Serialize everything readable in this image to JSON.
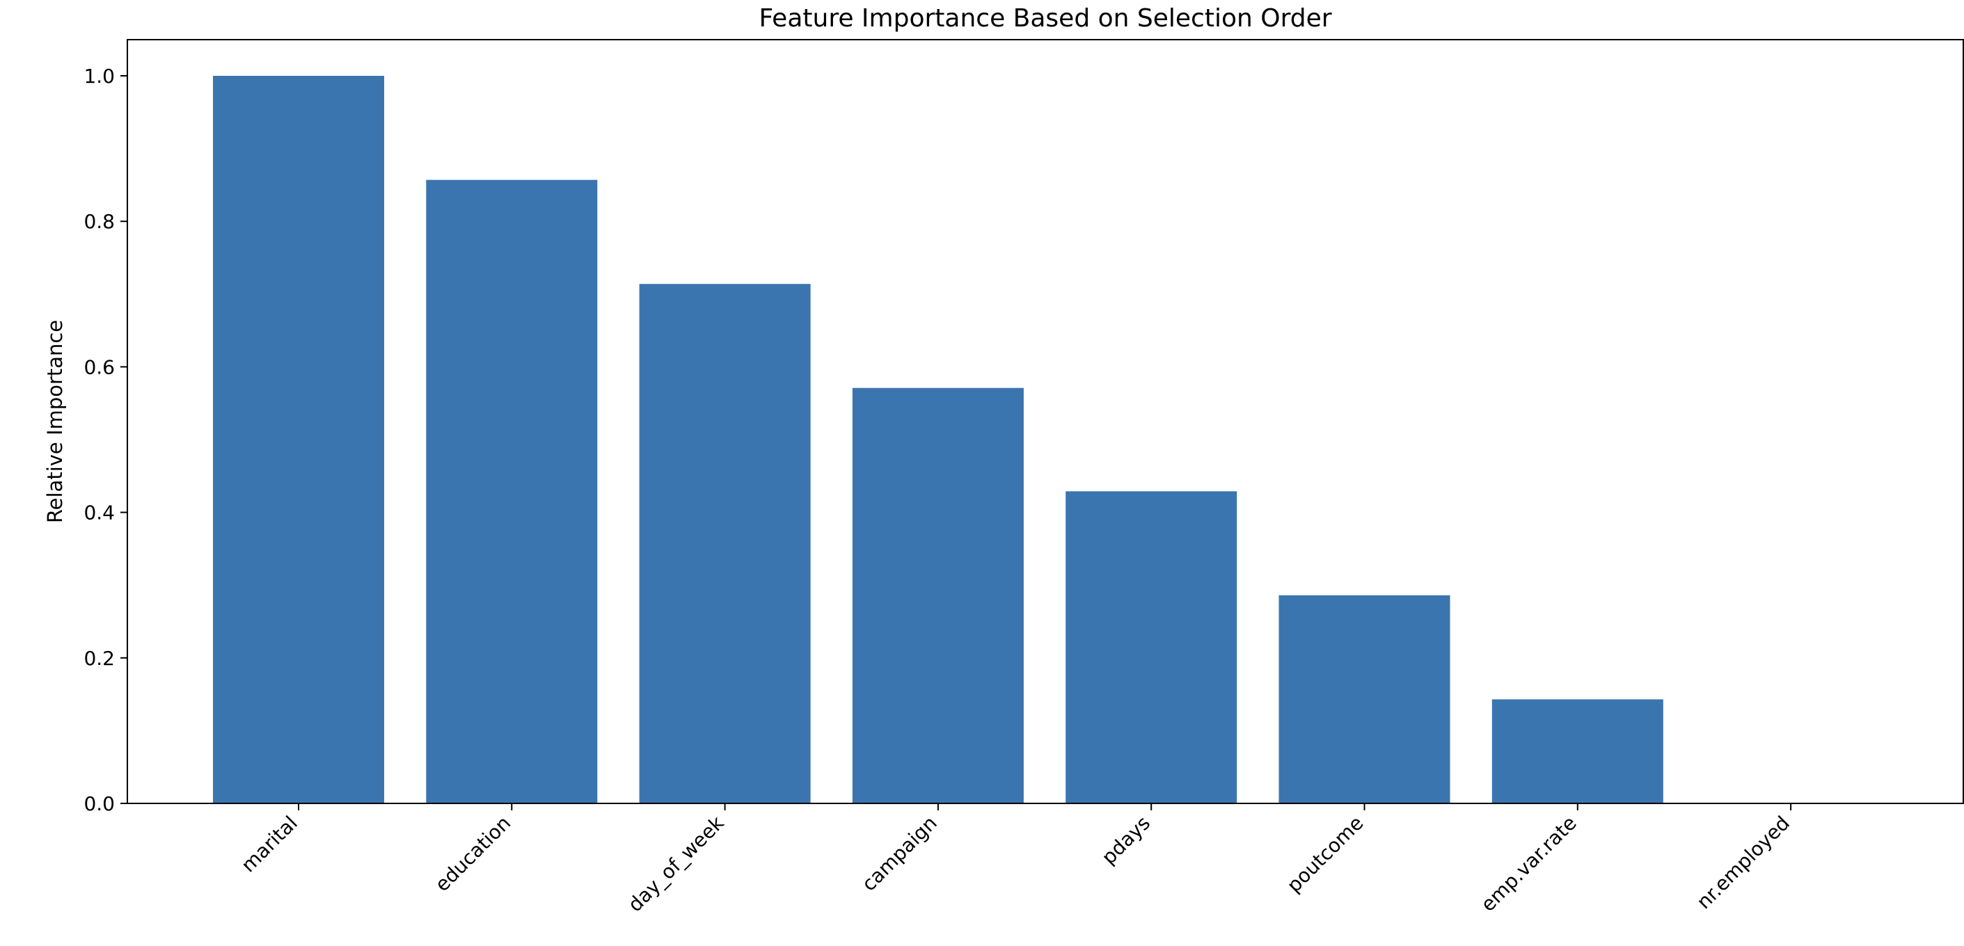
{
  "chart_data": {
    "type": "bar",
    "title": "Feature Importance Based on Selection Order",
    "xlabel": "",
    "ylabel": "Relative Importance",
    "categories": [
      "marital",
      "education",
      "day_of_week",
      "campaign",
      "pdays",
      "poutcome",
      "emp.var.rate",
      "nr.employed"
    ],
    "values": [
      1.0,
      0.857,
      0.714,
      0.571,
      0.429,
      0.286,
      0.143,
      0.0
    ],
    "ylim": [
      0,
      1.05
    ],
    "yticks": [
      "0.0",
      "0.2",
      "0.4",
      "0.6",
      "0.8",
      "1.0"
    ],
    "bar_color": "#3b75af",
    "grid": false,
    "legend": "none"
  }
}
